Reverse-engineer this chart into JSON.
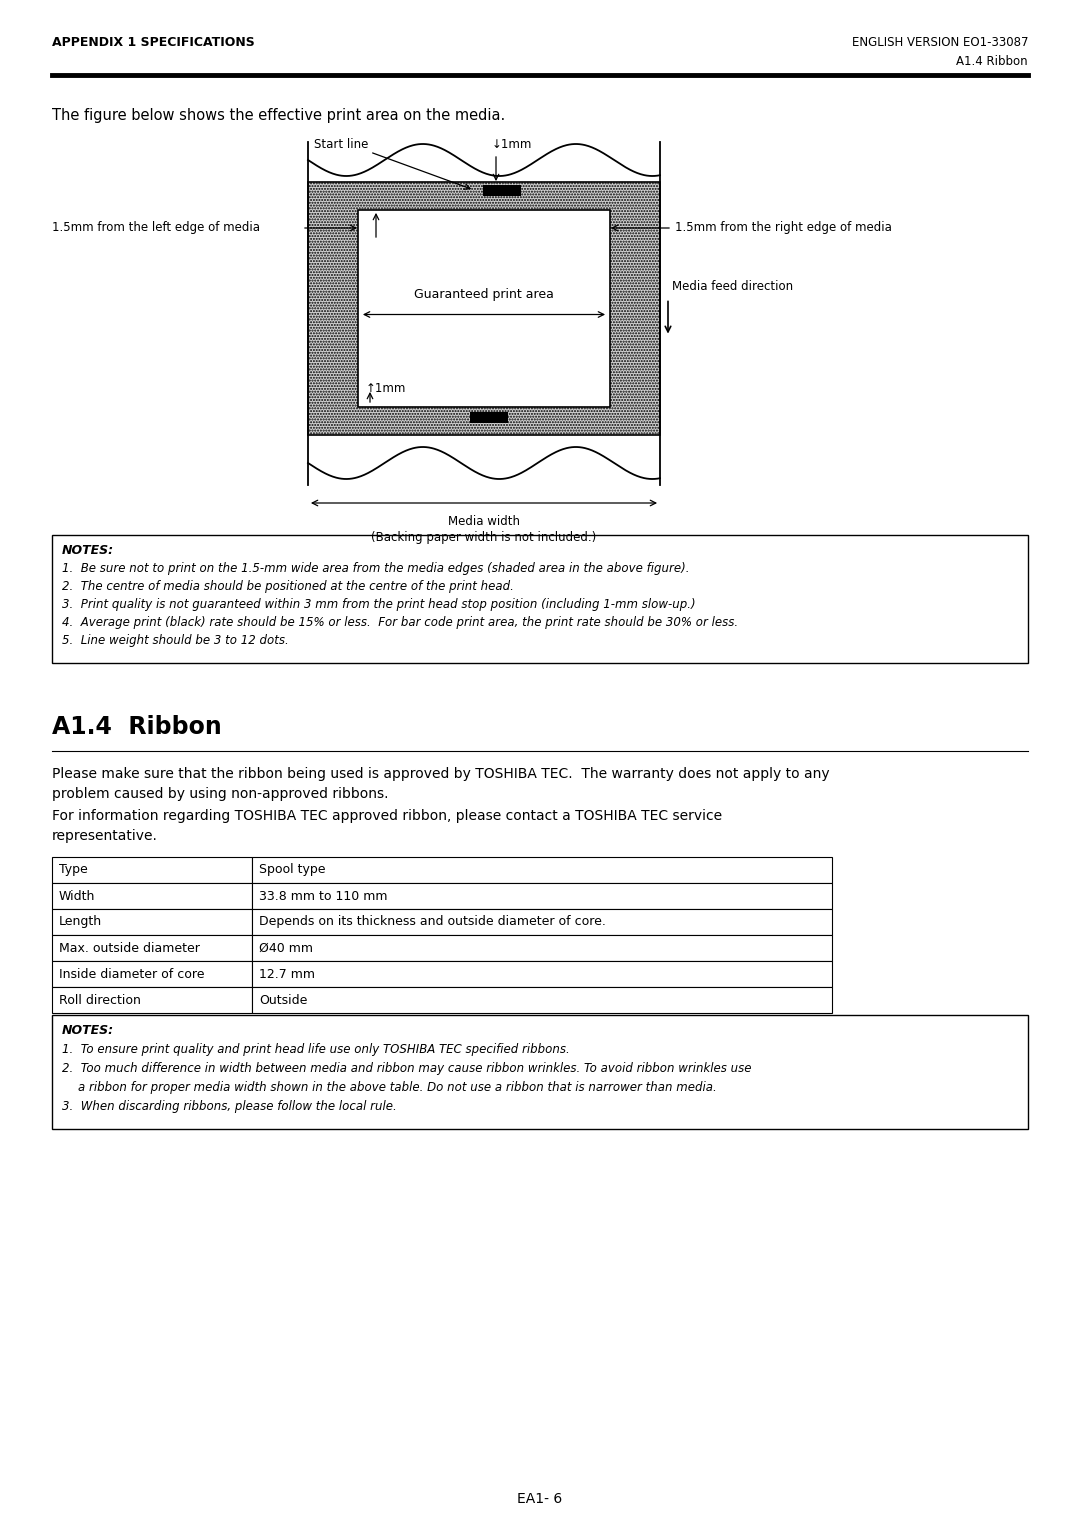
{
  "header_left": "APPENDIX 1 SPECIFICATIONS",
  "header_right": "ENGLISH VERSION EO1-33087",
  "subheader_right": "A1.4 Ribbon",
  "intro_text": "The figure below shows the effective print area on the media.",
  "notes_title": "NOTES:",
  "notes_items": [
    "Be sure not to print on the 1.5-mm wide area from the media edges (shaded area in the above figure).",
    "The centre of media should be positioned at the centre of the print head.",
    "Print quality is not guaranteed within 3 mm from the print head stop position (including 1-mm slow-up.)",
    "Average print (black) rate should be 15% or less.  For bar code print area, the print rate should be 30% or less.",
    "Line weight should be 3 to 12 dots."
  ],
  "section_title": "A1.4  Ribbon",
  "section_text1_line1": "Please make sure that the ribbon being used is approved by TOSHIBA TEC.  The warranty does not apply to any",
  "section_text1_line2": "problem caused by using non-approved ribbons.",
  "section_text2": "For information regarding TOSHIBA TEC approved ribbon, please contact a TOSHIBA TEC service",
  "section_text2b": "representative.",
  "table_headers": [
    "Type",
    "Spool type"
  ],
  "table_rows": [
    [
      "Width",
      "33.8 mm to 110 mm"
    ],
    [
      "Length",
      "Depends on its thickness and outside diameter of core."
    ],
    [
      "Max. outside diameter",
      "Ø40 mm"
    ],
    [
      "Inside diameter of core",
      "12.7 mm"
    ],
    [
      "Roll direction",
      "Outside"
    ]
  ],
  "notes2_title": "NOTES:",
  "notes2_items": [
    "To ensure print quality and print head life use only TOSHIBA TEC specified ribbons.",
    "Too much difference in width between media and ribbon may cause ribbon wrinkles. To avoid ribbon wrinkles use",
    "a ribbon for proper media width shown in the above table. Do not use a ribbon that is narrower than media.",
    "When discarding ribbons, please follow the local rule."
  ],
  "footer_text": "EA1- 6",
  "bg_color": "#ffffff",
  "shading_color": "#d0d0d0"
}
